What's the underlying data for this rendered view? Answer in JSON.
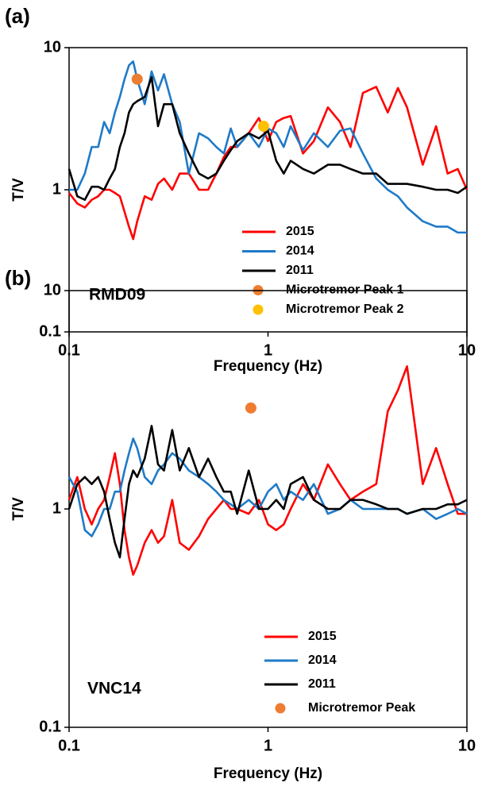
{
  "chart_data": [
    {
      "type": "line",
      "panel_label": "(a)",
      "annotation": "RMD09",
      "xlabel": "Frequency (Hz)",
      "ylabel": "T/V",
      "log_x": true,
      "log_y": true,
      "legend": "lower right",
      "xlim": [
        0.1,
        10
      ],
      "ylim": [
        0.1,
        10
      ],
      "xticks": [
        0.1,
        1,
        10
      ],
      "yticks": [
        0.1,
        1,
        10
      ],
      "x": [
        0.1,
        0.11,
        0.12,
        0.13,
        0.14,
        0.15,
        0.16,
        0.17,
        0.18,
        0.19,
        0.2,
        0.21,
        0.22,
        0.24,
        0.26,
        0.28,
        0.3,
        0.33,
        0.36,
        0.4,
        0.45,
        0.5,
        0.55,
        0.6,
        0.65,
        0.7,
        0.8,
        0.9,
        1,
        1.1,
        1.2,
        1.3,
        1.5,
        1.7,
        2,
        2.3,
        2.6,
        3,
        3.5,
        4,
        4.5,
        5,
        6,
        7,
        8,
        9,
        10
      ],
      "series": [
        {
          "name": "2015",
          "color": "#ff0000",
          "values": [
            0.95,
            0.8,
            0.75,
            0.85,
            0.9,
            1.0,
            1.0,
            0.95,
            0.9,
            0.7,
            0.55,
            0.45,
            0.6,
            0.9,
            0.85,
            1.1,
            1.2,
            1.0,
            1.3,
            1.3,
            1.0,
            1.0,
            1.3,
            1.7,
            2.0,
            2.0,
            2.5,
            3.2,
            2.2,
            3.0,
            3.2,
            3.3,
            1.8,
            2.2,
            3.8,
            3.0,
            2.0,
            4.8,
            5.3,
            3.5,
            5.2,
            3.8,
            1.5,
            2.8,
            1.3,
            1.4,
            1.0
          ]
        },
        {
          "name": "2014",
          "color": "#1f7ac8",
          "values": [
            1.0,
            1.0,
            1.3,
            2.0,
            2.0,
            3.0,
            2.5,
            3.5,
            4.5,
            6.0,
            7.5,
            8.0,
            6.0,
            4.0,
            6.8,
            5.0,
            6.5,
            4.0,
            3.0,
            1.3,
            2.5,
            2.3,
            2.0,
            1.8,
            2.7,
            2.0,
            2.5,
            2.0,
            2.7,
            2.5,
            2.0,
            2.8,
            1.9,
            2.5,
            2.0,
            2.6,
            2.7,
            1.8,
            1.2,
            1.0,
            0.9,
            0.75,
            0.6,
            0.55,
            0.55,
            0.5,
            0.5
          ]
        },
        {
          "name": "2011",
          "color": "#000000",
          "values": [
            1.4,
            0.9,
            0.85,
            1.05,
            1.05,
            1.0,
            1.2,
            1.4,
            2.0,
            2.5,
            3.5,
            4.0,
            4.2,
            4.5,
            6.2,
            2.8,
            4.0,
            4.0,
            2.5,
            1.8,
            1.3,
            1.2,
            1.3,
            1.6,
            1.9,
            2.2,
            2.5,
            2.3,
            2.6,
            1.6,
            1.3,
            1.6,
            1.4,
            1.3,
            1.5,
            1.5,
            1.4,
            1.3,
            1.3,
            1.1,
            1.1,
            1.1,
            1.05,
            1.0,
            1.0,
            0.95,
            1.05
          ]
        },
        {
          "name": "Microtremor Peak 1",
          "type": "scatter",
          "color": "#ed7d31",
          "x": [
            0.22
          ],
          "values": [
            6.0
          ]
        },
        {
          "name": "Microtremor Peak 2",
          "type": "scatter",
          "color": "#ffc000",
          "x": [
            0.95
          ],
          "values": [
            2.8
          ]
        }
      ]
    },
    {
      "type": "line",
      "panel_label": "(b)",
      "annotation": "VNC14",
      "xlabel": "Frequency (Hz)",
      "ylabel": "T/V",
      "log_x": true,
      "log_y": true,
      "legend": "lower right",
      "xlim": [
        0.1,
        10
      ],
      "ylim": [
        0.1,
        10
      ],
      "xticks": [
        0.1,
        1,
        10
      ],
      "yticks": [
        0.1,
        1,
        10
      ],
      "x": [
        0.1,
        0.11,
        0.12,
        0.13,
        0.14,
        0.15,
        0.16,
        0.17,
        0.18,
        0.19,
        0.2,
        0.21,
        0.22,
        0.24,
        0.26,
        0.28,
        0.3,
        0.33,
        0.36,
        0.4,
        0.45,
        0.5,
        0.55,
        0.6,
        0.65,
        0.7,
        0.8,
        0.9,
        1,
        1.1,
        1.2,
        1.3,
        1.5,
        1.7,
        2,
        2.3,
        2.6,
        3,
        3.5,
        4,
        4.5,
        5,
        6,
        7,
        8,
        9,
        10
      ],
      "series": [
        {
          "name": "2015",
          "color": "#ff0000",
          "values": [
            1.1,
            1.4,
            1.0,
            0.85,
            1.0,
            1.1,
            1.4,
            1.8,
            1.3,
            0.8,
            0.6,
            0.5,
            0.55,
            0.7,
            0.8,
            0.7,
            0.75,
            1.1,
            0.7,
            0.65,
            0.75,
            0.9,
            1.0,
            1.1,
            1.0,
            1.0,
            0.95,
            1.1,
            0.85,
            0.8,
            0.85,
            1.0,
            1.3,
            1.1,
            1.6,
            1.3,
            1.1,
            1.2,
            1.3,
            2.8,
            3.5,
            4.5,
            1.3,
            1.9,
            1.3,
            0.95,
            0.95
          ]
        },
        {
          "name": "2014",
          "color": "#1f7ac8",
          "values": [
            1.4,
            1.2,
            0.8,
            0.75,
            0.85,
            1.0,
            1.0,
            1.2,
            1.2,
            1.5,
            1.8,
            2.1,
            1.9,
            1.4,
            1.3,
            1.5,
            1.6,
            1.8,
            1.7,
            1.5,
            1.4,
            1.3,
            1.2,
            1.1,
            1.05,
            1.0,
            1.1,
            1.0,
            1.2,
            1.3,
            1.1,
            1.2,
            1.1,
            1.3,
            0.95,
            1.0,
            1.1,
            1.0,
            1.0,
            1.0,
            1.0,
            0.95,
            1.0,
            0.9,
            0.95,
            1.0,
            0.95
          ]
        },
        {
          "name": "2011",
          "color": "#000000",
          "values": [
            1.0,
            1.3,
            1.4,
            1.3,
            1.4,
            1.2,
            0.9,
            0.7,
            0.6,
            0.9,
            1.3,
            1.5,
            1.4,
            1.7,
            2.4,
            1.6,
            1.5,
            2.3,
            1.5,
            1.9,
            1.4,
            1.7,
            1.4,
            1.2,
            1.2,
            0.95,
            1.5,
            1.0,
            1.0,
            1.1,
            1.0,
            1.3,
            1.4,
            1.1,
            1.0,
            1.0,
            1.1,
            1.1,
            1.05,
            1.0,
            1.0,
            0.95,
            1.0,
            1.0,
            1.05,
            1.05,
            1.1
          ]
        },
        {
          "name": "Microtremor Peak",
          "type": "scatter",
          "color": "#ed7d31",
          "x": [
            0.82
          ],
          "values": [
            2.9
          ]
        }
      ]
    }
  ]
}
